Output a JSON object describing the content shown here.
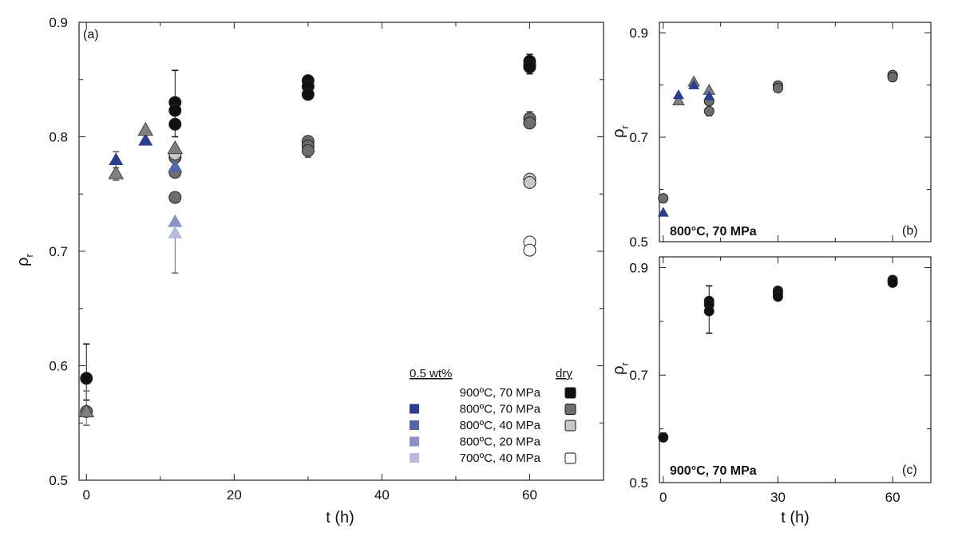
{
  "chart_data": [
    {
      "panel": "a",
      "type": "scatter",
      "tag": "(a)",
      "xlabel": "t (h)",
      "ylabel": "ρ",
      "ylabel_sub": "r",
      "xlim": [
        -1,
        70
      ],
      "ylim": [
        0.5,
        0.9
      ],
      "xticks": [
        0,
        20,
        40,
        60
      ],
      "xtick_labels": [
        "0",
        "20",
        "40",
        "60"
      ],
      "yticks": [
        0.5,
        0.6,
        0.7,
        0.8,
        0.9
      ],
      "ytick_labels": [
        "0.5",
        "0.6",
        "0.7",
        "0.8",
        "0.9"
      ],
      "legend": {
        "position": "bottom-right",
        "group_wet": "0.5 wt%",
        "group_dry": "dry",
        "entries": [
          {
            "label": "900ºC, 70 MPa",
            "wet_color": null,
            "dry_color": "#111111"
          },
          {
            "label": "800ºC, 70 MPa",
            "wet_color": "#2b3d8f",
            "dry_color": "#6e6e6e"
          },
          {
            "label": "800ºC, 40 MPa",
            "wet_color": "#5664a8",
            "dry_color": "#c8c8c8"
          },
          {
            "label": "800ºC, 20 MPa",
            "wet_color": "#8a92c6",
            "dry_color": null
          },
          {
            "label": "700ºC, 40 MPa",
            "wet_color": "#b7bcdc",
            "dry_color": "#ffffff"
          }
        ]
      },
      "series": [
        {
          "name": "900ºC, 70 MPa dry",
          "marker": "circle",
          "color": "#111111",
          "points": [
            [
              0,
              0.589
            ],
            [
              12,
              0.83
            ],
            [
              12,
              0.823
            ],
            [
              12,
              0.811
            ],
            [
              30,
              0.849
            ],
            [
              30,
              0.844
            ],
            [
              30,
              0.837
            ],
            [
              60,
              0.866
            ],
            [
              60,
              0.863
            ],
            [
              60,
              0.861
            ]
          ],
          "errorbars": [
            [
              0,
              0.59,
              0.619,
              0.57
            ],
            [
              12,
              0.83,
              0.858,
              0.8
            ],
            [
              60,
              0.865,
              0.872,
              0.855
            ]
          ]
        },
        {
          "name": "800ºC, 70 MPa dry",
          "marker": "circle",
          "color": "#6e6e6e",
          "points": [
            [
              0,
              0.56
            ],
            [
              12,
              0.782
            ],
            [
              12,
              0.769
            ],
            [
              12,
              0.747
            ],
            [
              30,
              0.796
            ],
            [
              30,
              0.792
            ],
            [
              30,
              0.788
            ],
            [
              60,
              0.816
            ],
            [
              60,
              0.812
            ]
          ],
          "errorbars": [
            [
              0,
              0.56,
              0.578,
              0.548
            ],
            [
              30,
              0.79,
              0.796,
              0.782
            ],
            [
              60,
              0.815,
              0.822,
              0.81
            ]
          ]
        },
        {
          "name": "800ºC, 40 MPa dry",
          "marker": "circle",
          "color": "#c8c8c8",
          "points": [
            [
              12,
              0.785
            ],
            [
              60,
              0.763
            ],
            [
              60,
              0.76
            ]
          ],
          "errorbars": []
        },
        {
          "name": "700ºC, 40 MPa dry",
          "marker": "circle",
          "color": "#ffffff",
          "points": [
            [
              60,
              0.708
            ],
            [
              60,
              0.701
            ]
          ],
          "errorbars": []
        },
        {
          "name": "800ºC, 70 MPa 0.5 wt%",
          "marker": "triangle",
          "color": "#2b3d8f",
          "points": [
            [
              4,
              0.78
            ],
            [
              8,
              0.797
            ]
          ],
          "errorbars": [
            [
              4,
              0.78,
              0.787,
              0.773
            ]
          ]
        },
        {
          "name": "800ºC, 40 MPa 0.5 wt%",
          "marker": "triangle",
          "color": "#5664a8",
          "points": [
            [
              12,
              0.774
            ]
          ],
          "errorbars": []
        },
        {
          "name": "800ºC, 20 MPa 0.5 wt%",
          "marker": "triangle",
          "color": "#8a92c6",
          "points": [
            [
              12,
              0.726
            ]
          ],
          "errorbars": []
        },
        {
          "name": "700ºC, 40 MPa 0.5 wt%",
          "marker": "triangle",
          "color": "#b7bcdc",
          "points": [
            [
              12,
              0.716
            ]
          ],
          "errorbars": [
            [
              12,
              0.716,
              0.723,
              0.681
            ]
          ]
        },
        {
          "name": "800ºC, 70 MPa dry (triangle)",
          "marker": "triangle",
          "color": "#808080",
          "points": [
            [
              0,
              0.56
            ],
            [
              4,
              0.768
            ],
            [
              8,
              0.806
            ],
            [
              12,
              0.79
            ]
          ],
          "errorbars": [
            [
              4,
              0.768,
              0.773,
              0.762
            ]
          ]
        }
      ]
    },
    {
      "panel": "b",
      "type": "scatter",
      "tag": "(b)",
      "condition": "800°C, 70 MPa",
      "xlabel": "",
      "ylabel": "ρ",
      "ylabel_sub": "r",
      "xlim": [
        -1,
        70
      ],
      "ylim": [
        0.5,
        0.92
      ],
      "xticks": [
        0,
        30,
        60
      ],
      "yticks": [
        0.5,
        0.7,
        0.9
      ],
      "ytick_labels": [
        "0.5",
        "0.7",
        "0.9"
      ],
      "series": [
        {
          "name": "circles",
          "marker": "circle",
          "color": "#6e6e6e",
          "points": [
            [
              0,
              0.583
            ],
            [
              12,
              0.769
            ],
            [
              12,
              0.75
            ],
            [
              30,
              0.799
            ],
            [
              30,
              0.794
            ],
            [
              60,
              0.819
            ],
            [
              60,
              0.815
            ]
          ],
          "errorbars": [
            [
              12,
              0.75,
              0.755,
              0.741
            ]
          ]
        },
        {
          "name": "gray triangles",
          "marker": "triangle",
          "color": "#808080",
          "points": [
            [
              4,
              0.77
            ],
            [
              8,
              0.806
            ],
            [
              12,
              0.79
            ]
          ],
          "errorbars": []
        },
        {
          "name": "blue triangles",
          "marker": "triangle",
          "color": "#2b3d8f",
          "points": [
            [
              0,
              0.556
            ],
            [
              4,
              0.781
            ],
            [
              8,
              0.8
            ],
            [
              12,
              0.779
            ]
          ],
          "errorbars": []
        }
      ]
    },
    {
      "panel": "c",
      "type": "scatter",
      "tag": "(c)",
      "condition": "900°C, 70 MPa",
      "xlabel": "t (h)",
      "ylabel": "ρ",
      "ylabel_sub": "r",
      "xlim": [
        -1,
        70
      ],
      "ylim": [
        0.5,
        0.92
      ],
      "xticks": [
        0,
        30,
        60
      ],
      "xtick_labels": [
        "0",
        "30",
        "60"
      ],
      "yticks": [
        0.5,
        0.7,
        0.9
      ],
      "ytick_labels": [
        "0.5",
        "0.7",
        "0.9"
      ],
      "series": [
        {
          "name": "circles",
          "marker": "circle",
          "color": "#111111",
          "points": [
            [
              0,
              0.584
            ],
            [
              12,
              0.838
            ],
            [
              12,
              0.831
            ],
            [
              12,
              0.819
            ],
            [
              30,
              0.857
            ],
            [
              30,
              0.852
            ],
            [
              30,
              0.846
            ],
            [
              60,
              0.877
            ],
            [
              60,
              0.872
            ]
          ],
          "errorbars": [
            [
              12,
              0.83,
              0.866,
              0.778
            ],
            [
              60,
              0.875,
              0.884,
              0.868
            ],
            [
              0,
              0.584,
              0.592,
              0.578
            ]
          ]
        }
      ]
    }
  ]
}
